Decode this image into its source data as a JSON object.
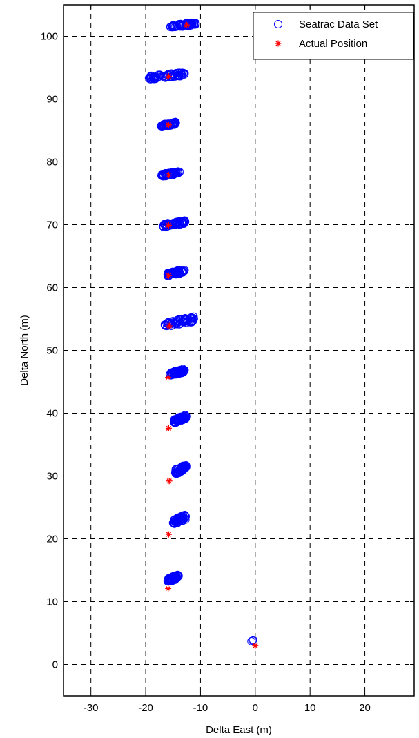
{
  "chart_data": {
    "type": "scatter",
    "title": "",
    "xlabel": "Delta East (m)",
    "ylabel": "Delta North (m)",
    "xlim": [
      -35,
      29
    ],
    "ylim": [
      -5,
      105
    ],
    "xticks": [
      -30,
      -20,
      -10,
      0,
      10,
      20
    ],
    "yticks": [
      0,
      10,
      20,
      30,
      40,
      50,
      60,
      70,
      80,
      90,
      100
    ],
    "grid": true,
    "legend_position": "top-right",
    "series": [
      {
        "name": "Seatrac Data Set",
        "marker": "circle",
        "color": "#0000ff",
        "clusters": [
          {
            "x": -0.5,
            "y": 3.8,
            "x_span": [
              -0.7,
              -0.4
            ],
            "y_span": [
              3.6,
              4.0
            ],
            "count": 3
          },
          {
            "x": -14.9,
            "y": 13.7,
            "x_span": [
              -16.0,
              -14.0
            ],
            "y_span": [
              13.0,
              14.4
            ],
            "count": 60
          },
          {
            "x": -13.7,
            "y": 23.0,
            "x_span": [
              -15.0,
              -12.7
            ],
            "y_span": [
              22.2,
              23.9
            ],
            "count": 60
          },
          {
            "x": -13.4,
            "y": 31.0,
            "x_span": [
              -14.6,
              -12.6
            ],
            "y_span": [
              30.2,
              31.9
            ],
            "count": 60
          },
          {
            "x": -13.5,
            "y": 39.1,
            "x_span": [
              -14.8,
              -12.6
            ],
            "y_span": [
              38.4,
              39.8
            ],
            "count": 60
          },
          {
            "x": -14.0,
            "y": 46.6,
            "x_span": [
              -15.6,
              -12.9
            ],
            "y_span": [
              45.9,
              47.1
            ],
            "count": 60
          },
          {
            "x": -14.3,
            "y": 54.6,
            "x_span": [
              -16.5,
              -11.2
            ],
            "y_span": [
              53.7,
              55.4
            ],
            "count": 70
          },
          {
            "x": -14.3,
            "y": 62.5,
            "x_span": [
              -16.0,
              -12.9
            ],
            "y_span": [
              61.8,
              63.0
            ],
            "count": 60
          },
          {
            "x": -14.6,
            "y": 70.2,
            "x_span": [
              -16.8,
              -12.8
            ],
            "y_span": [
              69.6,
              70.7
            ],
            "count": 60
          },
          {
            "x": -15.4,
            "y": 78.0,
            "x_span": [
              -17.1,
              -13.8
            ],
            "y_span": [
              77.6,
              78.6
            ],
            "count": 60
          },
          {
            "x": -15.8,
            "y": 85.9,
            "x_span": [
              -17.2,
              -14.5
            ],
            "y_span": [
              85.5,
              86.4
            ],
            "count": 60
          },
          {
            "x": -16.3,
            "y": 93.7,
            "x_span": [
              -19.4,
              -12.9
            ],
            "y_span": [
              93.1,
              94.3
            ],
            "count": 70
          },
          {
            "x": -13.3,
            "y": 101.8,
            "x_span": [
              -15.5,
              -10.9
            ],
            "y_span": [
              101.3,
              102.3
            ],
            "count": 60
          }
        ]
      },
      {
        "name": "Actual Position",
        "marker": "star",
        "color": "#ff0000",
        "points": [
          {
            "x": 0.0,
            "y": 3.0
          },
          {
            "x": -15.9,
            "y": 12.1
          },
          {
            "x": -15.8,
            "y": 20.7
          },
          {
            "x": -15.7,
            "y": 29.2
          },
          {
            "x": -15.8,
            "y": 37.6
          },
          {
            "x": -15.9,
            "y": 45.7
          },
          {
            "x": -15.7,
            "y": 53.9
          },
          {
            "x": -15.8,
            "y": 61.9
          },
          {
            "x": -15.8,
            "y": 69.9
          },
          {
            "x": -15.8,
            "y": 77.9
          },
          {
            "x": -15.8,
            "y": 85.9
          },
          {
            "x": -15.8,
            "y": 93.6
          },
          {
            "x": -12.5,
            "y": 101.8
          }
        ]
      }
    ]
  }
}
